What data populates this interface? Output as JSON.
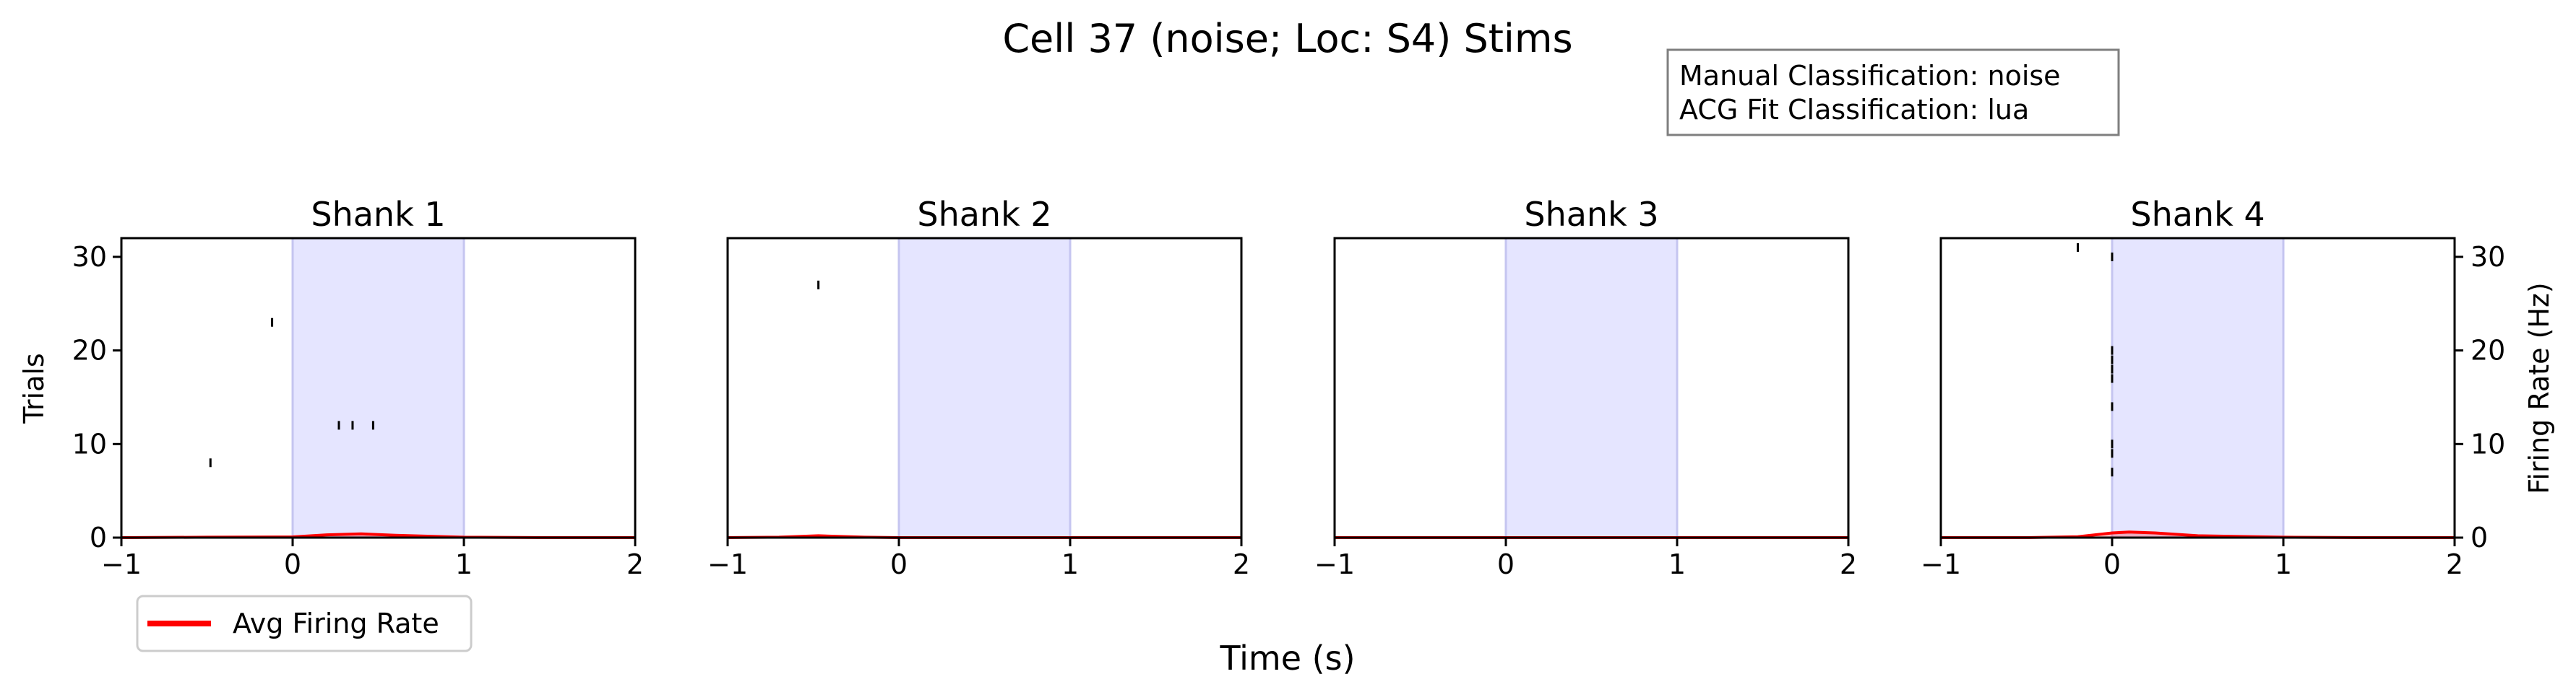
{
  "figure": {
    "title": "Cell 37 (noise; Loc: S4) Stims",
    "xlabel": "Time (s)",
    "ylabel_left": "Trials",
    "ylabel_right": "Firing Rate (Hz)",
    "info_box": {
      "line1": "Manual Classification: noise",
      "line2": "ACG Fit Classification: lua"
    },
    "legend": {
      "label": "Avg Firing Rate",
      "color": "#ff0000"
    }
  },
  "chart_data": [
    {
      "type": "scatter",
      "title": "Shank 1",
      "xlim": [
        -1,
        2
      ],
      "ylim": [
        0,
        32
      ],
      "x_ticks": [
        "−1",
        "0",
        "1",
        "2"
      ],
      "y_ticks": [
        "0",
        "10",
        "20",
        "30"
      ],
      "stim_window": [
        0,
        1
      ],
      "spikes": [
        {
          "x": -0.48,
          "y": 8
        },
        {
          "x": -0.12,
          "y": 23
        },
        {
          "x": 0.27,
          "y": 12
        },
        {
          "x": 0.35,
          "y": 12
        },
        {
          "x": 0.47,
          "y": 12
        }
      ],
      "rate_x": [
        -1,
        -0.5,
        0,
        0.2,
        0.4,
        0.6,
        1,
        1.5,
        2
      ],
      "rate_y": [
        0,
        0.05,
        0.08,
        0.3,
        0.4,
        0.25,
        0.05,
        0,
        0
      ]
    },
    {
      "type": "scatter",
      "title": "Shank 2",
      "xlim": [
        -1,
        2
      ],
      "ylim": [
        0,
        32
      ],
      "x_ticks": [
        "−1",
        "0",
        "1",
        "2"
      ],
      "y_ticks": [],
      "stim_window": [
        0,
        1
      ],
      "spikes": [
        {
          "x": -0.47,
          "y": 27
        }
      ],
      "rate_x": [
        -1,
        -0.7,
        -0.47,
        -0.2,
        0,
        1,
        2
      ],
      "rate_y": [
        0,
        0.05,
        0.2,
        0.05,
        0,
        0,
        0
      ]
    },
    {
      "type": "scatter",
      "title": "Shank 3",
      "xlim": [
        -1,
        2
      ],
      "ylim": [
        0,
        32
      ],
      "x_ticks": [
        "−1",
        "0",
        "1",
        "2"
      ],
      "y_ticks": [],
      "stim_window": [
        0,
        1
      ],
      "spikes": [],
      "rate_x": [
        -1,
        2
      ],
      "rate_y": [
        0,
        0
      ]
    },
    {
      "type": "scatter",
      "title": "Shank 4",
      "xlim": [
        -1,
        2
      ],
      "ylim": [
        0,
        32
      ],
      "x_ticks": [
        "−1",
        "0",
        "1",
        "2"
      ],
      "y_ticks": [
        "0",
        "10",
        "20",
        "30"
      ],
      "stim_window": [
        0,
        1
      ],
      "spikes": [
        {
          "x": -0.2,
          "y": 31
        },
        {
          "x": 0.0,
          "y": 30
        },
        {
          "x": 0.0,
          "y": 20
        },
        {
          "x": 0.0,
          "y": 19
        },
        {
          "x": 0.0,
          "y": 18
        },
        {
          "x": 0.0,
          "y": 17
        },
        {
          "x": 0.0,
          "y": 14
        },
        {
          "x": 0.0,
          "y": 10
        },
        {
          "x": 0.0,
          "y": 9
        },
        {
          "x": 0.0,
          "y": 7
        }
      ],
      "rate_x": [
        -1,
        -0.5,
        -0.2,
        0,
        0.1,
        0.25,
        0.5,
        1,
        1.5,
        2
      ],
      "rate_y": [
        0,
        0,
        0.1,
        0.5,
        0.6,
        0.5,
        0.2,
        0.05,
        0,
        0
      ]
    }
  ]
}
